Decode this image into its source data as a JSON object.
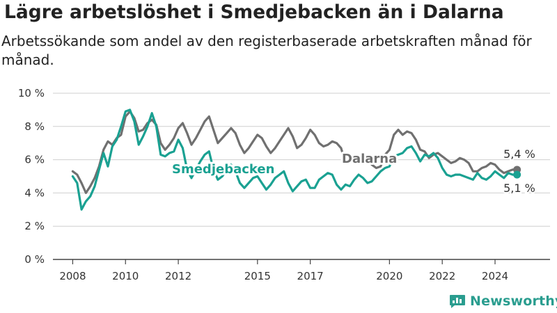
{
  "title": "Lägre arbetslöshet i Smedjebacken än i Dalarna",
  "subtitle": "Arbetssökande som andel av den registerbaserade arbetskraften månad för månad.",
  "brand": {
    "name": "Newsworthy",
    "icon": "newsworthy-logo-icon",
    "color": "#2a9d8f"
  },
  "chart_data": {
    "type": "line",
    "ylim": [
      0,
      10
    ],
    "yticks": [
      "0 %",
      "2 %",
      "4 %",
      "6 %",
      "8 %",
      "10 %"
    ],
    "xticks": [
      "2008",
      "2010",
      "2012",
      "2015",
      "2017",
      "2020",
      "2022",
      "2024"
    ],
    "grid": true,
    "series": [
      {
        "name": "Dalarna",
        "color": "#707070",
        "end_label": "5,4 %",
        "points": [
          [
            "2008-01",
            5.3
          ],
          [
            "2008-03",
            5.1
          ],
          [
            "2008-05",
            4.6
          ],
          [
            "2008-07",
            4.0
          ],
          [
            "2008-09",
            4.4
          ],
          [
            "2008-11",
            4.9
          ],
          [
            "2009-01",
            5.6
          ],
          [
            "2009-03",
            6.6
          ],
          [
            "2009-05",
            7.1
          ],
          [
            "2009-07",
            6.9
          ],
          [
            "2009-09",
            7.3
          ],
          [
            "2009-11",
            7.5
          ],
          [
            "2010-01",
            8.6
          ],
          [
            "2010-03",
            8.9
          ],
          [
            "2010-05",
            8.5
          ],
          [
            "2010-07",
            7.7
          ],
          [
            "2010-09",
            7.8
          ],
          [
            "2010-11",
            8.2
          ],
          [
            "2011-01",
            8.4
          ],
          [
            "2011-03",
            8.1
          ],
          [
            "2011-05",
            7.0
          ],
          [
            "2011-07",
            6.6
          ],
          [
            "2011-09",
            6.9
          ],
          [
            "2011-11",
            7.3
          ],
          [
            "2012-01",
            7.9
          ],
          [
            "2012-03",
            8.2
          ],
          [
            "2012-05",
            7.6
          ],
          [
            "2012-07",
            6.9
          ],
          [
            "2012-09",
            7.3
          ],
          [
            "2012-11",
            7.8
          ],
          [
            "2013-01",
            8.3
          ],
          [
            "2013-03",
            8.6
          ],
          [
            "2013-05",
            7.8
          ],
          [
            "2013-07",
            7.0
          ],
          [
            "2013-09",
            7.3
          ],
          [
            "2013-11",
            7.6
          ],
          [
            "2014-01",
            7.9
          ],
          [
            "2014-03",
            7.6
          ],
          [
            "2014-05",
            6.9
          ],
          [
            "2014-07",
            6.4
          ],
          [
            "2014-09",
            6.7
          ],
          [
            "2014-11",
            7.1
          ],
          [
            "2015-01",
            7.5
          ],
          [
            "2015-03",
            7.3
          ],
          [
            "2015-05",
            6.8
          ],
          [
            "2015-07",
            6.4
          ],
          [
            "2015-09",
            6.7
          ],
          [
            "2015-11",
            7.1
          ],
          [
            "2016-01",
            7.5
          ],
          [
            "2016-03",
            7.9
          ],
          [
            "2016-05",
            7.4
          ],
          [
            "2016-07",
            6.7
          ],
          [
            "2016-09",
            6.9
          ],
          [
            "2016-11",
            7.3
          ],
          [
            "2017-01",
            7.8
          ],
          [
            "2017-03",
            7.5
          ],
          [
            "2017-05",
            7.0
          ],
          [
            "2017-07",
            6.8
          ],
          [
            "2017-09",
            6.9
          ],
          [
            "2017-11",
            7.1
          ],
          [
            "2018-01",
            7.0
          ],
          [
            "2018-03",
            6.7
          ],
          [
            "2018-05",
            5.8
          ],
          [
            "2018-07",
            5.9
          ],
          [
            "2018-09",
            5.8
          ],
          [
            "2018-11",
            6.0
          ],
          [
            "2019-01",
            5.9
          ],
          [
            "2019-03",
            6.0
          ],
          [
            "2019-05",
            5.7
          ],
          [
            "2019-07",
            5.5
          ],
          [
            "2019-09",
            5.6
          ],
          [
            "2019-11",
            6.3
          ],
          [
            "2020-01",
            6.6
          ],
          [
            "2020-03",
            7.5
          ],
          [
            "2020-05",
            7.8
          ],
          [
            "2020-07",
            7.5
          ],
          [
            "2020-09",
            7.7
          ],
          [
            "2020-11",
            7.6
          ],
          [
            "2021-01",
            7.2
          ],
          [
            "2021-03",
            6.6
          ],
          [
            "2021-05",
            6.5
          ],
          [
            "2021-07",
            6.1
          ],
          [
            "2021-09",
            6.3
          ],
          [
            "2021-11",
            6.4
          ],
          [
            "2022-01",
            6.2
          ],
          [
            "2022-03",
            6.0
          ],
          [
            "2022-05",
            5.8
          ],
          [
            "2022-07",
            5.9
          ],
          [
            "2022-09",
            6.1
          ],
          [
            "2022-11",
            6.0
          ],
          [
            "2023-01",
            5.8
          ],
          [
            "2023-03",
            5.3
          ],
          [
            "2023-05",
            5.3
          ],
          [
            "2023-07",
            5.5
          ],
          [
            "2023-09",
            5.6
          ],
          [
            "2023-11",
            5.8
          ],
          [
            "2024-01",
            5.7
          ],
          [
            "2024-03",
            5.4
          ],
          [
            "2024-05",
            5.2
          ],
          [
            "2024-07",
            5.3
          ],
          [
            "2024-09",
            5.4
          ],
          [
            "2024-11",
            5.4
          ]
        ]
      },
      {
        "name": "Smedjebacken",
        "color": "#1aa192",
        "end_label": "5,1 %",
        "points": [
          [
            "2008-01",
            5.0
          ],
          [
            "2008-03",
            4.6
          ],
          [
            "2008-05",
            3.0
          ],
          [
            "2008-07",
            3.5
          ],
          [
            "2008-09",
            3.8
          ],
          [
            "2008-11",
            4.4
          ],
          [
            "2009-01",
            5.4
          ],
          [
            "2009-03",
            6.4
          ],
          [
            "2009-05",
            5.6
          ],
          [
            "2009-07",
            6.8
          ],
          [
            "2009-09",
            7.2
          ],
          [
            "2009-11",
            8.0
          ],
          [
            "2010-01",
            8.9
          ],
          [
            "2010-03",
            9.0
          ],
          [
            "2010-05",
            8.3
          ],
          [
            "2010-07",
            6.9
          ],
          [
            "2010-09",
            7.4
          ],
          [
            "2010-11",
            8.0
          ],
          [
            "2011-01",
            8.8
          ],
          [
            "2011-03",
            8.0
          ],
          [
            "2011-05",
            6.3
          ],
          [
            "2011-07",
            6.2
          ],
          [
            "2011-09",
            6.4
          ],
          [
            "2011-11",
            6.5
          ],
          [
            "2012-01",
            7.2
          ],
          [
            "2012-03",
            6.7
          ],
          [
            "2012-05",
            5.4
          ],
          [
            "2012-07",
            4.9
          ],
          [
            "2012-09",
            5.4
          ],
          [
            "2012-11",
            5.9
          ],
          [
            "2013-01",
            6.3
          ],
          [
            "2013-03",
            6.5
          ],
          [
            "2013-05",
            5.4
          ],
          [
            "2013-07",
            4.8
          ],
          [
            "2013-09",
            5.0
          ],
          [
            "2013-11",
            5.4
          ],
          [
            "2014-01",
            5.7
          ],
          [
            "2014-03",
            5.3
          ],
          [
            "2014-05",
            4.6
          ],
          [
            "2014-07",
            4.3
          ],
          [
            "2014-09",
            4.6
          ],
          [
            "2014-11",
            4.9
          ],
          [
            "2015-01",
            5.0
          ],
          [
            "2015-03",
            4.6
          ],
          [
            "2015-05",
            4.2
          ],
          [
            "2015-07",
            4.5
          ],
          [
            "2015-09",
            4.9
          ],
          [
            "2015-11",
            5.1
          ],
          [
            "2016-01",
            5.3
          ],
          [
            "2016-03",
            4.6
          ],
          [
            "2016-05",
            4.1
          ],
          [
            "2016-07",
            4.4
          ],
          [
            "2016-09",
            4.7
          ],
          [
            "2016-11",
            4.8
          ],
          [
            "2017-01",
            4.3
          ],
          [
            "2017-03",
            4.3
          ],
          [
            "2017-05",
            4.8
          ],
          [
            "2017-07",
            5.0
          ],
          [
            "2017-09",
            5.2
          ],
          [
            "2017-11",
            5.1
          ],
          [
            "2018-01",
            4.5
          ],
          [
            "2018-03",
            4.2
          ],
          [
            "2018-05",
            4.5
          ],
          [
            "2018-07",
            4.4
          ],
          [
            "2018-09",
            4.8
          ],
          [
            "2018-11",
            5.1
          ],
          [
            "2019-01",
            4.9
          ],
          [
            "2019-03",
            4.6
          ],
          [
            "2019-05",
            4.7
          ],
          [
            "2019-07",
            5.0
          ],
          [
            "2019-09",
            5.3
          ],
          [
            "2019-11",
            5.5
          ],
          [
            "2020-01",
            5.6
          ],
          [
            "2020-03",
            6.2
          ],
          [
            "2020-05",
            6.3
          ],
          [
            "2020-07",
            6.4
          ],
          [
            "2020-09",
            6.7
          ],
          [
            "2020-11",
            6.8
          ],
          [
            "2021-01",
            6.4
          ],
          [
            "2021-03",
            5.9
          ],
          [
            "2021-05",
            6.3
          ],
          [
            "2021-07",
            6.2
          ],
          [
            "2021-09",
            6.4
          ],
          [
            "2021-11",
            6.1
          ],
          [
            "2022-01",
            5.5
          ],
          [
            "2022-03",
            5.1
          ],
          [
            "2022-05",
            5.0
          ],
          [
            "2022-07",
            5.1
          ],
          [
            "2022-09",
            5.1
          ],
          [
            "2022-11",
            5.0
          ],
          [
            "2023-01",
            4.9
          ],
          [
            "2023-03",
            4.8
          ],
          [
            "2023-05",
            5.2
          ],
          [
            "2023-07",
            4.9
          ],
          [
            "2023-09",
            4.8
          ],
          [
            "2023-11",
            5.0
          ],
          [
            "2024-01",
            5.3
          ],
          [
            "2024-03",
            5.1
          ],
          [
            "2024-05",
            4.9
          ],
          [
            "2024-07",
            5.2
          ],
          [
            "2024-09",
            5.1
          ],
          [
            "2024-11",
            5.1
          ]
        ]
      }
    ]
  }
}
